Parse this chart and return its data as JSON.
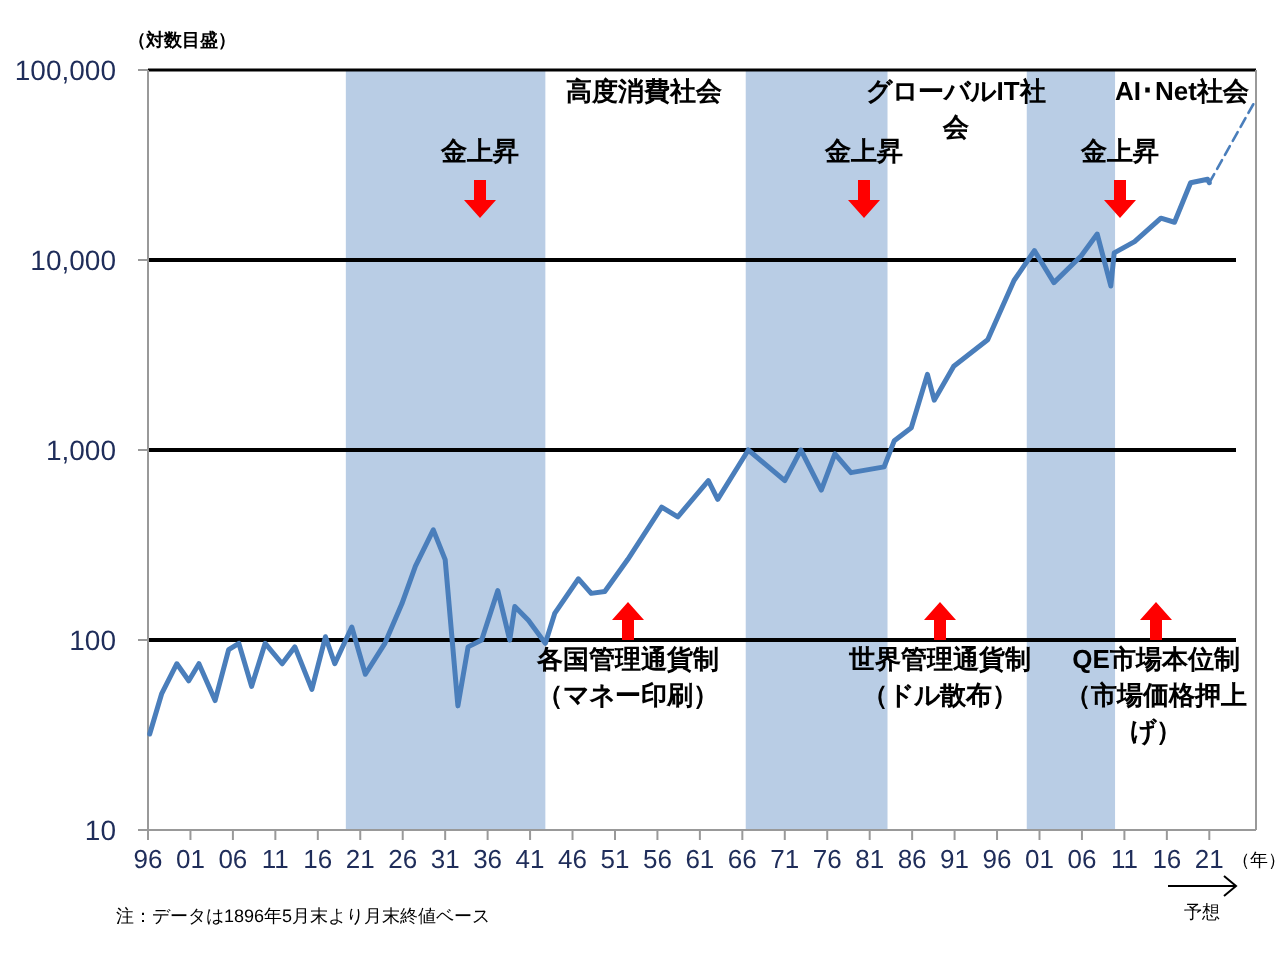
{
  "chart_data": {
    "type": "line",
    "ylabel": "（対数目盛）",
    "xlabel": "（年）",
    "log": "y",
    "grid": "y",
    "xlim": [
      1896,
      2026.5
    ],
    "xticks": [
      {
        "value": 1896,
        "label": "96"
      },
      {
        "value": 1901,
        "label": "01"
      },
      {
        "value": 1906,
        "label": "06"
      },
      {
        "value": 1911,
        "label": "11"
      },
      {
        "value": 1916,
        "label": "16"
      },
      {
        "value": 1921,
        "label": "21"
      },
      {
        "value": 1926,
        "label": "26"
      },
      {
        "value": 1931,
        "label": "31"
      },
      {
        "value": 1936,
        "label": "36"
      },
      {
        "value": 1941,
        "label": "41"
      },
      {
        "value": 1946,
        "label": "46"
      },
      {
        "value": 1951,
        "label": "51"
      },
      {
        "value": 1956,
        "label": "56"
      },
      {
        "value": 1961,
        "label": "61"
      },
      {
        "value": 1966,
        "label": "66"
      },
      {
        "value": 1971,
        "label": "71"
      },
      {
        "value": 1976,
        "label": "76"
      },
      {
        "value": 1981,
        "label": "81"
      },
      {
        "value": 1986,
        "label": "86"
      },
      {
        "value": 1991,
        "label": "91"
      },
      {
        "value": 1996,
        "label": "96"
      },
      {
        "value": 2001,
        "label": "01"
      },
      {
        "value": 2006,
        "label": "06"
      },
      {
        "value": 2011,
        "label": "11"
      },
      {
        "value": 2016,
        "label": "16"
      },
      {
        "value": 2021,
        "label": "21"
      }
    ],
    "ylim": [
      10,
      100000
    ],
    "yticks": [
      10,
      100,
      {
        "value": 1000,
        "label": "1,000"
      },
      {
        "value": 10000,
        "label": "10,000"
      },
      {
        "value": 100000,
        "label": "100,000"
      }
    ],
    "bands": [
      {
        "axis": "x",
        "from": 1919.3,
        "to": 1942.8,
        "color": "#b9cde5"
      },
      {
        "axis": "x",
        "from": 1966.4,
        "to": 1983.1,
        "color": "#b9cde5"
      },
      {
        "axis": "x",
        "from": 1999.5,
        "to": 2009.9,
        "color": "#b9cde5"
      }
    ],
    "series": [
      {
        "color": "#4a7ebb",
        "x": [
          1896.2,
          1897.6,
          1899.4,
          1900.8,
          1902,
          1903.9,
          1905.5,
          1906.7,
          1908.2,
          1909.8,
          1911.8,
          1913.3,
          1915.3,
          1916.9,
          1918,
          1920,
          1921.6,
          1923.9,
          1925.9,
          1927.5,
          1929.6,
          1931,
          1932.5,
          1933.7,
          1935.3,
          1937.2,
          1938.6,
          1939.2,
          1940.8,
          1942.8,
          1943.9,
          1946.7,
          1948.2,
          1949.8,
          1952.5,
          1956.5,
          1958.4,
          1962,
          1963.1,
          1966.7,
          1971,
          1972.9,
          1975.3,
          1976.9,
          1978.8,
          1982.7,
          1983.9,
          1985.9,
          1987.8,
          1988.6,
          1990.9,
          1994.9,
          1998,
          2000.4,
          2002.7,
          2005.9,
          2007.8,
          2009.4,
          2009.8,
          2012.2,
          2015.3,
          2016.9,
          2018.8,
          2020.8,
          2021
        ],
        "values": [
          32,
          52,
          75,
          61,
          75,
          48,
          89,
          96,
          57,
          96,
          75,
          92,
          55,
          104,
          75,
          117,
          66,
          96,
          155,
          245,
          380,
          265,
          45,
          92,
          100,
          182,
          100,
          150,
          127,
          96,
          138,
          210,
          176,
          180,
          265,
          500,
          445,
          690,
          550,
          1000,
          690,
          1000,
          615,
          955,
          760,
          815,
          1120,
          1310,
          2500,
          1830,
          2760,
          3800,
          7800,
          11200,
          7600,
          10500,
          13700,
          7300,
          10900,
          12500,
          16600,
          15800,
          25500,
          26600,
          25500
        ]
      },
      {
        "color": "#4a7ebb",
        "line_style": "dashed",
        "x": [
          2021,
          2026.5
        ],
        "values": [
          25500,
          70000
        ]
      }
    ],
    "annotations": [
      "高度消費社会",
      "グローバルIT社会",
      "AI･Net社会",
      "金上昇",
      "金上昇",
      "金上昇",
      "各国管理通貨制（マネー印刷）",
      "世界管理通貨制（ドル散布）",
      "QE市場本位制（市場価格押上げ）",
      "予想",
      "注：データは1896年5月末より月末終値ベース"
    ]
  }
}
